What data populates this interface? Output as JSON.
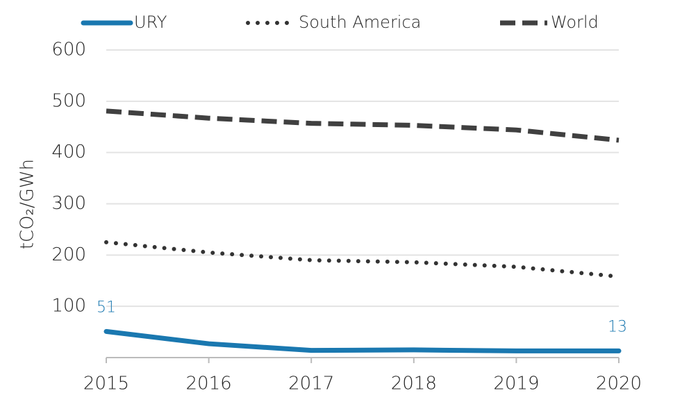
{
  "chart_data": {
    "type": "line",
    "y_label": "tCO₂/GWh",
    "categories": [
      "2015",
      "2016",
      "2017",
      "2018",
      "2019",
      "2020"
    ],
    "series": [
      {
        "name": "URY",
        "color": "#1a78b0",
        "style": "solid",
        "values": [
          51,
          27,
          14,
          15,
          13,
          13
        ],
        "value_labels": [
          "51",
          null,
          null,
          null,
          null,
          "13"
        ]
      },
      {
        "name": "South America",
        "color": "#333333",
        "style": "dotted",
        "values": [
          225,
          205,
          190,
          186,
          177,
          158
        ]
      },
      {
        "name": "World",
        "color": "#404040",
        "style": "dashed",
        "values": [
          481,
          467,
          457,
          453,
          444,
          424
        ]
      }
    ],
    "ylim": [
      0,
      600
    ],
    "yticks": [
      100,
      200,
      300,
      400,
      500,
      600
    ],
    "grid": true,
    "legend": "top"
  }
}
